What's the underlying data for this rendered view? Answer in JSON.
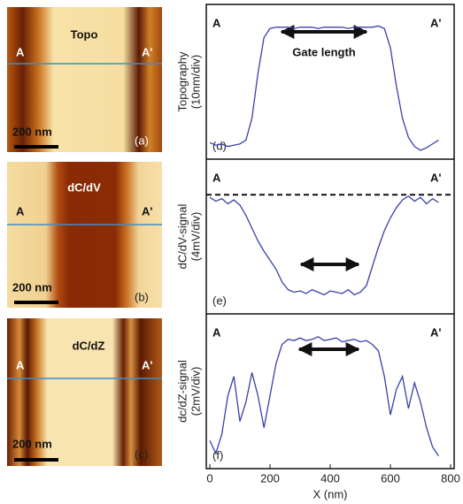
{
  "images": [
    {
      "title": "Topo",
      "left": "A",
      "right": "A'",
      "scale": "200 nm",
      "label": "(a)"
    },
    {
      "title": "dC/dV",
      "left": "A",
      "right": "A'",
      "scale": "200 nm",
      "label": "(b)"
    },
    {
      "title": "dC/dZ",
      "left": "A",
      "right": "A'",
      "scale": "200 nm",
      "label": "(c)"
    }
  ],
  "chart_data": [
    {
      "type": "line",
      "ylabel": [
        "Topography",
        "(10nm/div)"
      ],
      "left": "A",
      "right": "A'",
      "annotation": "Gate length",
      "panel": "(d)",
      "x": [
        0,
        20,
        40,
        60,
        80,
        100,
        120,
        140,
        160,
        180,
        200,
        220,
        240,
        260,
        280,
        300,
        320,
        340,
        360,
        380,
        400,
        420,
        440,
        460,
        480,
        500,
        520,
        540,
        560,
        580,
        600,
        620,
        640,
        660,
        680,
        700,
        720,
        740,
        760
      ],
      "series": [
        {
          "color": "#3b40a8",
          "values": [
            0.6,
            0.4,
            0.5,
            0.3,
            0.4,
            0.5,
            0.8,
            2.5,
            6,
            8.8,
            9.5,
            9.6,
            9.6,
            9.6,
            9.5,
            9.6,
            9.6,
            9.6,
            9.5,
            9.6,
            9.6,
            9.6,
            9.6,
            9.5,
            9.6,
            9.6,
            9.6,
            9.6,
            9.7,
            9.5,
            8,
            5,
            2.5,
            1,
            0.3,
            0,
            0.2,
            0.5,
            0.8
          ]
        }
      ],
      "xlim": [
        0,
        800
      ],
      "ylim": [
        0,
        10
      ]
    },
    {
      "type": "line",
      "ylabel": [
        "dC/dV-signal",
        "(4mV/div)"
      ],
      "left": "A",
      "right": "A'",
      "panel": "(e)",
      "hline": 8.6,
      "x": [
        0,
        20,
        40,
        60,
        80,
        100,
        120,
        140,
        160,
        180,
        200,
        220,
        240,
        260,
        280,
        300,
        320,
        340,
        360,
        380,
        400,
        420,
        440,
        460,
        480,
        500,
        520,
        540,
        560,
        580,
        600,
        620,
        640,
        660,
        680,
        700,
        720,
        740,
        760
      ],
      "series": [
        {
          "color": "#3b40a8",
          "values": [
            8.4,
            8.1,
            8.3,
            7.9,
            8.2,
            7.8,
            7,
            6,
            5,
            4.2,
            3.5,
            2.8,
            1.8,
            1.2,
            1.0,
            1.1,
            0.9,
            1.2,
            1.0,
            0.8,
            1.1,
            1.0,
            0.9,
            1.2,
            0.8,
            1.0,
            1.5,
            3,
            4.5,
            5.8,
            6.8,
            7.6,
            8.2,
            8.5,
            8.1,
            8.4,
            7.9,
            8.3,
            8.0
          ]
        }
      ],
      "xlim": [
        0,
        800
      ],
      "ylim": [
        0,
        10
      ]
    },
    {
      "type": "line",
      "ylabel": [
        "dc/dZ-signal",
        "(2mV/div)"
      ],
      "left": "A",
      "right": "A'",
      "panel": "(f)",
      "xlabel": "X (nm)",
      "x": [
        0,
        20,
        40,
        60,
        80,
        100,
        120,
        140,
        160,
        180,
        200,
        220,
        240,
        260,
        280,
        300,
        320,
        340,
        360,
        380,
        400,
        420,
        440,
        460,
        480,
        500,
        520,
        540,
        560,
        580,
        600,
        620,
        640,
        660,
        680,
        700,
        720,
        740,
        760
      ],
      "series": [
        {
          "color": "#3b40a8",
          "values": [
            1.5,
            0.5,
            2,
            5,
            6.5,
            3,
            4.5,
            6.8,
            5,
            2.5,
            5,
            7.5,
            9,
            9.4,
            9.3,
            9.5,
            9.3,
            9.4,
            9.6,
            9.3,
            9.4,
            9.5,
            9.2,
            9.3,
            9.4,
            9.2,
            9.3,
            9.0,
            8.5,
            6.5,
            3.5,
            5.5,
            6.5,
            4,
            6,
            4.5,
            2.5,
            1.0,
            0.3
          ]
        }
      ],
      "xlim": [
        0,
        800
      ],
      "ylim": [
        0,
        10
      ],
      "xticks": [
        0,
        200,
        400,
        600,
        800
      ]
    }
  ]
}
